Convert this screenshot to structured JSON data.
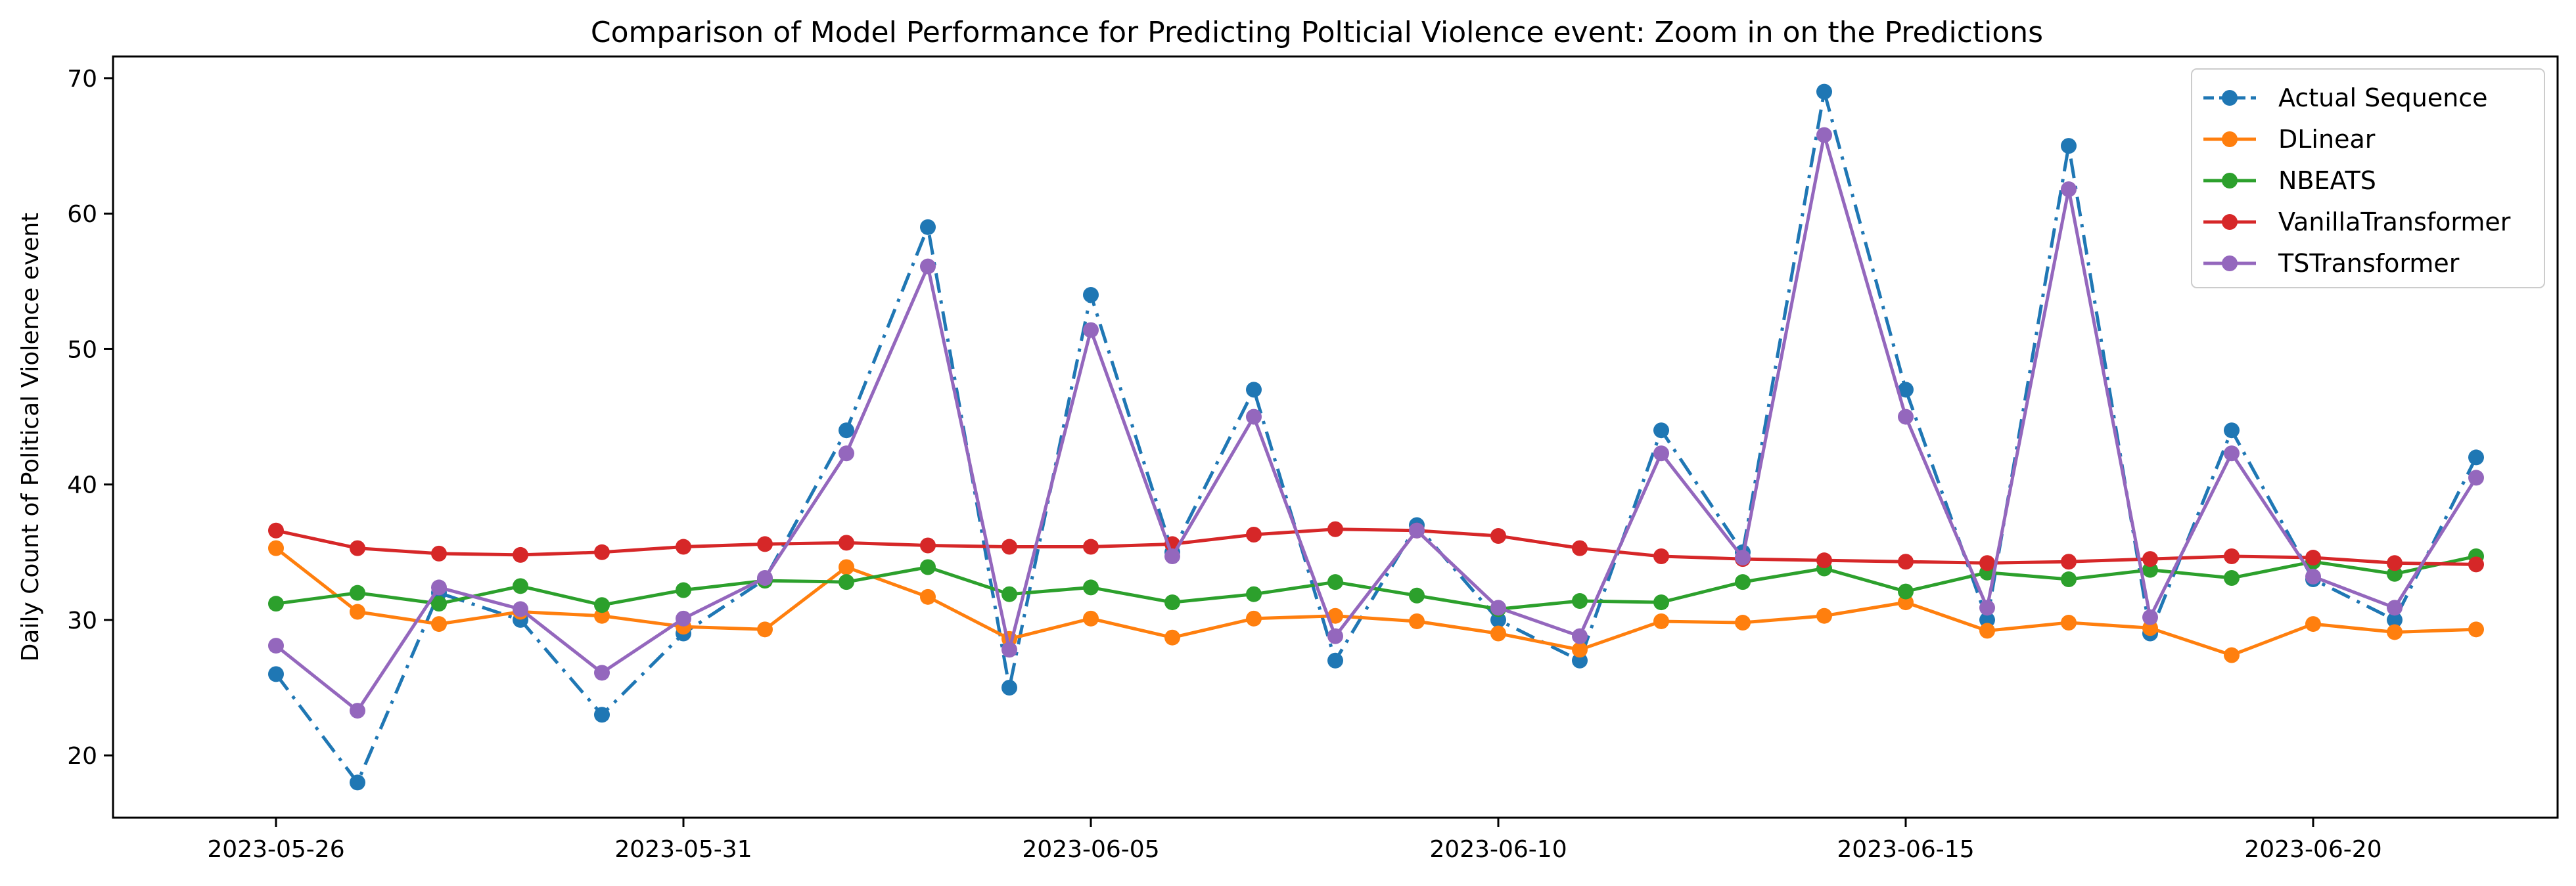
{
  "chart_data": {
    "type": "line",
    "title": "Comparison of Model Performance for Predicting Polticial Violence event: Zoom in on the Predictions",
    "xlabel": "",
    "ylabel": "Daily Count of Political Violence event",
    "x": [
      "2023-05-26",
      "2023-05-27",
      "2023-05-28",
      "2023-05-29",
      "2023-05-30",
      "2023-05-31",
      "2023-06-01",
      "2023-06-02",
      "2023-06-03",
      "2023-06-04",
      "2023-06-05",
      "2023-06-06",
      "2023-06-07",
      "2023-06-08",
      "2023-06-09",
      "2023-06-10",
      "2023-06-11",
      "2023-06-12",
      "2023-06-13",
      "2023-06-14",
      "2023-06-15",
      "2023-06-16",
      "2023-06-17",
      "2023-06-18",
      "2023-06-19",
      "2023-06-20",
      "2023-06-21",
      "2023-06-22"
    ],
    "x_ticks": [
      "2023-05-26",
      "2023-05-31",
      "2023-06-05",
      "2023-06-10",
      "2023-06-15",
      "2023-06-20"
    ],
    "xlim": [
      "2023-05-24",
      "2023-06-23"
    ],
    "y_ticks": [
      20,
      30,
      40,
      50,
      60,
      70
    ],
    "ylim": [
      15.4,
      71.6
    ],
    "grid": false,
    "legend_position": "top-right",
    "series": [
      {
        "name": "Actual Sequence",
        "color": "#1f77b4",
        "dash": "dashdot",
        "values": [
          26,
          18,
          32,
          30,
          23,
          29,
          33,
          44,
          59,
          25,
          54,
          35,
          47,
          27,
          37,
          30,
          27,
          44,
          35,
          69,
          47,
          30,
          65,
          29,
          44,
          33,
          30,
          42
        ]
      },
      {
        "name": "DLinear",
        "color": "#ff7f0e",
        "dash": "solid",
        "values": [
          35.3,
          30.6,
          29.7,
          30.6,
          30.3,
          29.5,
          29.3,
          33.9,
          31.7,
          28.6,
          30.1,
          28.7,
          30.1,
          30.3,
          29.9,
          29.0,
          27.8,
          29.9,
          29.8,
          30.3,
          31.3,
          29.2,
          29.8,
          29.4,
          27.4,
          29.7,
          29.1,
          29.3
        ]
      },
      {
        "name": "NBEATS",
        "color": "#2ca02c",
        "dash": "solid",
        "values": [
          31.2,
          32.0,
          31.2,
          32.5,
          31.1,
          32.2,
          32.9,
          32.8,
          33.9,
          31.9,
          32.4,
          31.3,
          31.9,
          32.8,
          31.8,
          30.8,
          31.4,
          31.3,
          32.8,
          33.8,
          32.1,
          33.5,
          33.0,
          33.7,
          33.1,
          34.3,
          33.4,
          34.7
        ]
      },
      {
        "name": "VanillaTransformer",
        "color": "#d62728",
        "dash": "solid",
        "values": [
          36.6,
          35.3,
          34.9,
          34.8,
          35.0,
          35.4,
          35.6,
          35.7,
          35.5,
          35.4,
          35.4,
          35.6,
          36.3,
          36.7,
          36.6,
          36.2,
          35.3,
          34.7,
          34.5,
          34.4,
          34.3,
          34.2,
          34.3,
          34.5,
          34.7,
          34.6,
          34.2,
          34.1
        ]
      },
      {
        "name": "TSTransformer",
        "color": "#9467bd",
        "dash": "solid",
        "values": [
          28.1,
          23.3,
          32.4,
          30.8,
          26.1,
          30.1,
          33.1,
          42.3,
          56.1,
          27.8,
          51.4,
          34.7,
          45.0,
          28.8,
          36.6,
          30.9,
          28.8,
          42.3,
          34.6,
          65.8,
          45.0,
          30.9,
          61.8,
          30.2,
          42.3,
          33.2,
          30.9,
          40.5
        ]
      }
    ]
  }
}
